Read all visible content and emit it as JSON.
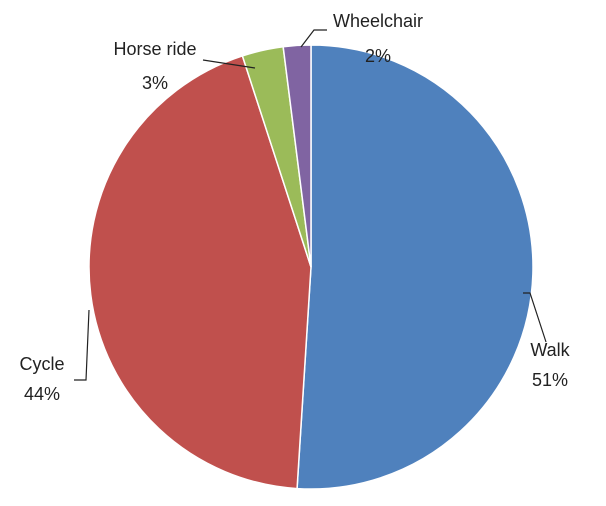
{
  "chart_data": {
    "type": "pie",
    "categories": [
      "Walk",
      "Cycle",
      "Horse ride",
      "Wheelchair"
    ],
    "values": [
      51,
      44,
      3,
      2
    ],
    "value_labels": [
      "51%",
      "44%",
      "3%",
      "2%"
    ],
    "colors": [
      "#4f81bd",
      "#c0504d",
      "#9bbb59",
      "#8064a2"
    ]
  }
}
